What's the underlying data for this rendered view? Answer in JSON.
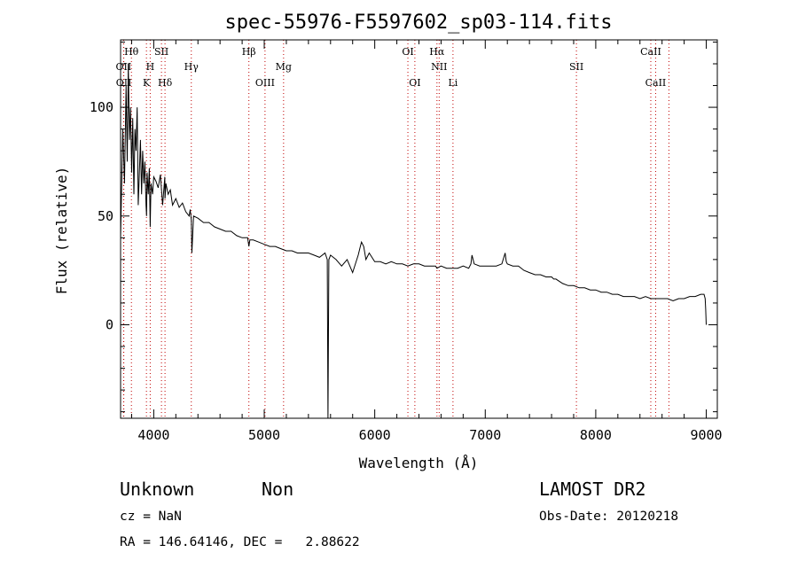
{
  "chart_data": {
    "type": "line",
    "title": "spec-55976-F5597602_sp03-114.fits",
    "xlabel": "Wavelength (Å)",
    "ylabel": "Flux (relative)",
    "xlim": [
      3700,
      9100
    ],
    "ylim": [
      -43,
      131
    ],
    "xticks": [
      4000,
      5000,
      6000,
      7000,
      8000,
      9000
    ],
    "yticks": [
      0,
      50,
      100
    ],
    "grid": false,
    "line_color": "#000000",
    "marker_color": "#c00000",
    "series": [
      {
        "x": [
          3700,
          3720,
          3735,
          3750,
          3760,
          3770,
          3780,
          3790,
          3800,
          3810,
          3820,
          3830,
          3840,
          3850,
          3860,
          3870,
          3880,
          3890,
          3900,
          3910,
          3920,
          3930,
          3935,
          3940,
          3950,
          3960,
          3968,
          3975,
          3990,
          4000,
          4020,
          4040,
          4060,
          4080,
          4100,
          4102,
          4110,
          4130,
          4150,
          4170,
          4200,
          4230,
          4260,
          4290,
          4320,
          4330,
          4340,
          4345,
          4360,
          4400,
          4450,
          4500,
          4550,
          4600,
          4650,
          4700,
          4750,
          4800,
          4850,
          4861,
          4870,
          4900,
          4950,
          5000,
          5050,
          5100,
          5150,
          5200,
          5250,
          5300,
          5350,
          5400,
          5450,
          5500,
          5550,
          5570,
          5577,
          5585,
          5600,
          5650,
          5700,
          5750,
          5800,
          5850,
          5870,
          5880,
          5900,
          5920,
          5950,
          6000,
          6050,
          6100,
          6150,
          6200,
          6250,
          6300,
          6350,
          6400,
          6450,
          6500,
          6550,
          6563,
          6600,
          6650,
          6700,
          6750,
          6800,
          6850,
          6870,
          6880,
          6900,
          6950,
          7000,
          7050,
          7100,
          7150,
          7180,
          7190,
          7200,
          7250,
          7300,
          7350,
          7400,
          7450,
          7500,
          7550,
          7600,
          7620,
          7640,
          7700,
          7750,
          7800,
          7850,
          7900,
          7950,
          8000,
          8050,
          8100,
          8150,
          8200,
          8250,
          8300,
          8350,
          8400,
          8450,
          8500,
          8550,
          8600,
          8650,
          8700,
          8750,
          8800,
          8850,
          8900,
          8950,
          8980,
          8990,
          8995,
          9000
        ],
        "values": [
          40,
          90,
          65,
          110,
          75,
          120,
          85,
          100,
          70,
          95,
          60,
          90,
          80,
          100,
          55,
          70,
          85,
          60,
          80,
          65,
          75,
          55,
          50,
          70,
          60,
          72,
          45,
          65,
          60,
          68,
          66,
          63,
          69,
          55,
          68,
          58,
          65,
          60,
          62,
          55,
          58,
          54,
          56,
          52,
          50,
          53,
          48,
          33,
          50,
          49,
          47,
          47,
          45,
          44,
          43,
          43,
          41,
          40,
          40,
          36,
          39,
          39,
          38,
          37,
          36,
          36,
          35,
          34,
          34,
          33,
          33,
          33,
          32,
          31,
          33,
          30,
          -43,
          30,
          32,
          30,
          27,
          30,
          24,
          32,
          36,
          38,
          36,
          30,
          33,
          29,
          29,
          28,
          29,
          28,
          28,
          27,
          28,
          28,
          27,
          27,
          27,
          26,
          27,
          26,
          26,
          26,
          27,
          26,
          28,
          32,
          28,
          27,
          27,
          27,
          27,
          28,
          33,
          29,
          28,
          27,
          27,
          25,
          24,
          23,
          23,
          22,
          22,
          21,
          21,
          19,
          18,
          18,
          17,
          17,
          16,
          16,
          15,
          15,
          14,
          14,
          13,
          13,
          13,
          12,
          13,
          12,
          12,
          12,
          12,
          11,
          12,
          12,
          13,
          13,
          14,
          14,
          12,
          7,
          0
        ]
      }
    ],
    "lines": [
      {
        "name": "Hθ",
        "x": 3798,
        "row": 1
      },
      {
        "name": "OII",
        "x": 3727,
        "row": 2
      },
      {
        "name": "OII",
        "x": 3729,
        "row": 3
      },
      {
        "name": "SII",
        "x": 4070,
        "row": 1
      },
      {
        "name": "H",
        "x": 3968,
        "row": 2
      },
      {
        "name": "K",
        "x": 3934,
        "row": 3
      },
      {
        "name": "Hδ",
        "x": 4102,
        "row": 3
      },
      {
        "name": "Hγ",
        "x": 4340,
        "row": 2
      },
      {
        "name": "Hβ",
        "x": 4861,
        "row": 1
      },
      {
        "name": "OIII",
        "x": 5007,
        "row": 3
      },
      {
        "name": "Mg",
        "x": 5175,
        "row": 2
      },
      {
        "name": "OI",
        "x": 6300,
        "row": 1
      },
      {
        "name": "Hα",
        "x": 6563,
        "row": 1
      },
      {
        "name": "OI",
        "x": 6363,
        "row": 3
      },
      {
        "name": "NII",
        "x": 6583,
        "row": 2
      },
      {
        "name": "Li",
        "x": 6708,
        "row": 3
      },
      {
        "name": "SII",
        "x": 7825,
        "row": 2
      },
      {
        "name": "CaII",
        "x": 8498,
        "row": 1
      },
      {
        "name": "CaII",
        "x": 8542,
        "row": 3
      },
      {
        "name": "",
        "x": 8662,
        "row": 0
      }
    ]
  },
  "info": {
    "class": "Unknown",
    "subclass": "Non",
    "survey": "LAMOST DR2",
    "cz": "cz = NaN",
    "obs_date": "Obs-Date: 20120218",
    "coords": "RA = 146.64146, DEC =   2.88622"
  }
}
